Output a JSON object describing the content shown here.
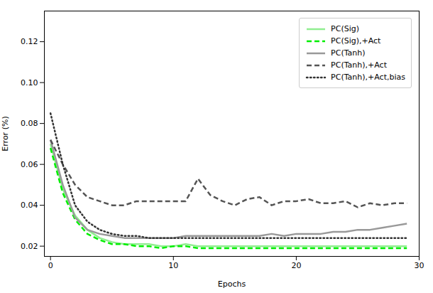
{
  "chart_data": {
    "type": "line",
    "xlabel": "Epochs",
    "ylabel": "Error (%)",
    "x": [
      0,
      1,
      2,
      3,
      4,
      5,
      6,
      7,
      8,
      9,
      10,
      11,
      12,
      13,
      14,
      15,
      16,
      17,
      18,
      19,
      20,
      21,
      22,
      23,
      24,
      25,
      26,
      27,
      28,
      29
    ],
    "xlim": [
      -0.5,
      30
    ],
    "xticks": [
      0,
      10,
      20,
      30
    ],
    "ylim": [
      0.015,
      0.135
    ],
    "yticks": [
      0.02,
      0.04,
      0.06,
      0.08,
      {
        "value": 0.1,
        "label": "0.10"
      },
      0.12
    ],
    "legend": "upper right",
    "grid": false,
    "series": [
      {
        "name": "PC(Sig)",
        "color": "#90EE90",
        "line_style": "solid",
        "values": [
          0.07,
          0.048,
          0.035,
          0.028,
          0.024,
          0.022,
          0.021,
          0.021,
          0.021,
          0.02,
          0.02,
          0.021,
          0.02,
          0.02,
          0.02,
          0.02,
          0.02,
          0.02,
          0.02,
          0.02,
          0.02,
          0.02,
          0.02,
          0.02,
          0.02,
          0.02,
          0.02,
          0.02,
          0.02,
          0.02
        ]
      },
      {
        "name": "PC(Sig),+Act",
        "color": "#00EE00",
        "line_style": "dashed",
        "values": [
          0.068,
          0.046,
          0.033,
          0.026,
          0.023,
          0.021,
          0.021,
          0.02,
          0.02,
          0.019,
          0.02,
          0.02,
          0.019,
          0.019,
          0.019,
          0.019,
          0.019,
          0.019,
          0.019,
          0.019,
          0.019,
          0.019,
          0.019,
          0.019,
          0.019,
          0.019,
          0.019,
          0.019,
          0.019,
          0.019
        ]
      },
      {
        "name": "PC(Tanh)",
        "color": "#999999",
        "line_style": "solid",
        "values": [
          0.072,
          0.05,
          0.034,
          0.028,
          0.026,
          0.025,
          0.024,
          0.024,
          0.024,
          0.024,
          0.024,
          0.025,
          0.025,
          0.025,
          0.025,
          0.025,
          0.025,
          0.025,
          0.026,
          0.025,
          0.026,
          0.026,
          0.026,
          0.027,
          0.027,
          0.028,
          0.028,
          0.029,
          0.03,
          0.031
        ]
      },
      {
        "name": "PC(Tanh),+Act",
        "color": "#555555",
        "line_style": "dashed",
        "values": [
          0.072,
          0.06,
          0.05,
          0.044,
          0.042,
          0.04,
          0.04,
          0.042,
          0.042,
          0.042,
          0.042,
          0.042,
          0.053,
          0.045,
          0.042,
          0.04,
          0.043,
          0.044,
          0.04,
          0.042,
          0.042,
          0.043,
          0.041,
          0.041,
          0.042,
          0.039,
          0.041,
          0.04,
          0.041,
          0.041
        ]
      },
      {
        "name": "PC(Tanh),+Act,bias",
        "color": "#333333",
        "line_style": "dotted",
        "values": [
          0.085,
          0.06,
          0.04,
          0.032,
          0.028,
          0.026,
          0.025,
          0.025,
          0.024,
          0.024,
          0.024,
          0.024,
          0.024,
          0.024,
          0.024,
          0.024,
          0.024,
          0.024,
          0.024,
          0.024,
          0.024,
          0.024,
          0.024,
          0.024,
          0.024,
          0.024,
          0.024,
          0.024,
          0.024,
          0.024
        ]
      }
    ]
  }
}
